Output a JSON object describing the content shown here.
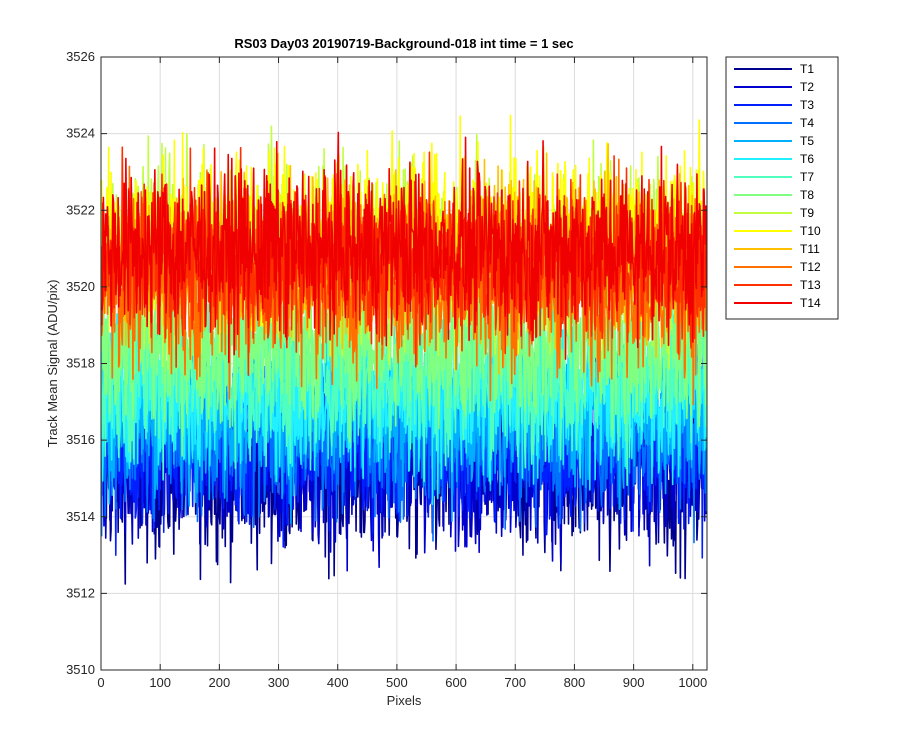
{
  "chart_data": {
    "type": "line",
    "title": "RS03 Day03 20190719-Background-018 int time = 1 sec",
    "xlabel": "Pixels",
    "ylabel": "Track Mean Signal (ADU/pix)",
    "xlim": [
      0,
      1024
    ],
    "ylim": [
      3510,
      3526
    ],
    "xticks": [
      0,
      100,
      200,
      300,
      400,
      500,
      600,
      700,
      800,
      900,
      1000
    ],
    "yticks": [
      3510,
      3512,
      3514,
      3516,
      3518,
      3520,
      3522,
      3524,
      3526
    ],
    "grid": true,
    "legend_position": "outside-top-right",
    "series": [
      {
        "name": "T1",
        "color": "#00008f",
        "mean": 3515.2,
        "min": 3511.9,
        "max": 3518.6
      },
      {
        "name": "T2",
        "color": "#0000cf",
        "mean": 3515.5,
        "min": 3512.3,
        "max": 3518.9
      },
      {
        "name": "T3",
        "color": "#0020ff",
        "mean": 3515.9,
        "min": 3512.8,
        "max": 3519.2
      },
      {
        "name": "T4",
        "color": "#0070ff",
        "mean": 3516.3,
        "min": 3513.2,
        "max": 3519.6
      },
      {
        "name": "T5",
        "color": "#00b0ff",
        "mean": 3516.8,
        "min": 3513.8,
        "max": 3520.0
      },
      {
        "name": "T6",
        "color": "#20f0ff",
        "mean": 3517.2,
        "min": 3514.2,
        "max": 3520.4
      },
      {
        "name": "T7",
        "color": "#50ffc0",
        "mean": 3517.8,
        "min": 3514.8,
        "max": 3521.0
      },
      {
        "name": "T8",
        "color": "#80ff80",
        "mean": 3518.6,
        "min": 3515.5,
        "max": 3521.8
      },
      {
        "name": "T9",
        "color": "#c0ff40",
        "mean": 3520.9,
        "min": 3517.8,
        "max": 3525.1
      },
      {
        "name": "T10",
        "color": "#ffff00",
        "mean": 3521.3,
        "min": 3518.2,
        "max": 3524.9
      },
      {
        "name": "T11",
        "color": "#ffc000",
        "mean": 3520.7,
        "min": 3517.6,
        "max": 3523.9
      },
      {
        "name": "T12",
        "color": "#ff7000",
        "mean": 3520.1,
        "min": 3516.9,
        "max": 3523.5
      },
      {
        "name": "T13",
        "color": "#ff3000",
        "mean": 3520.6,
        "min": 3517.4,
        "max": 3523.8
      },
      {
        "name": "T14",
        "color": "#f00000",
        "mean": 3521.0,
        "min": 3517.9,
        "max": 3524.2
      }
    ]
  }
}
